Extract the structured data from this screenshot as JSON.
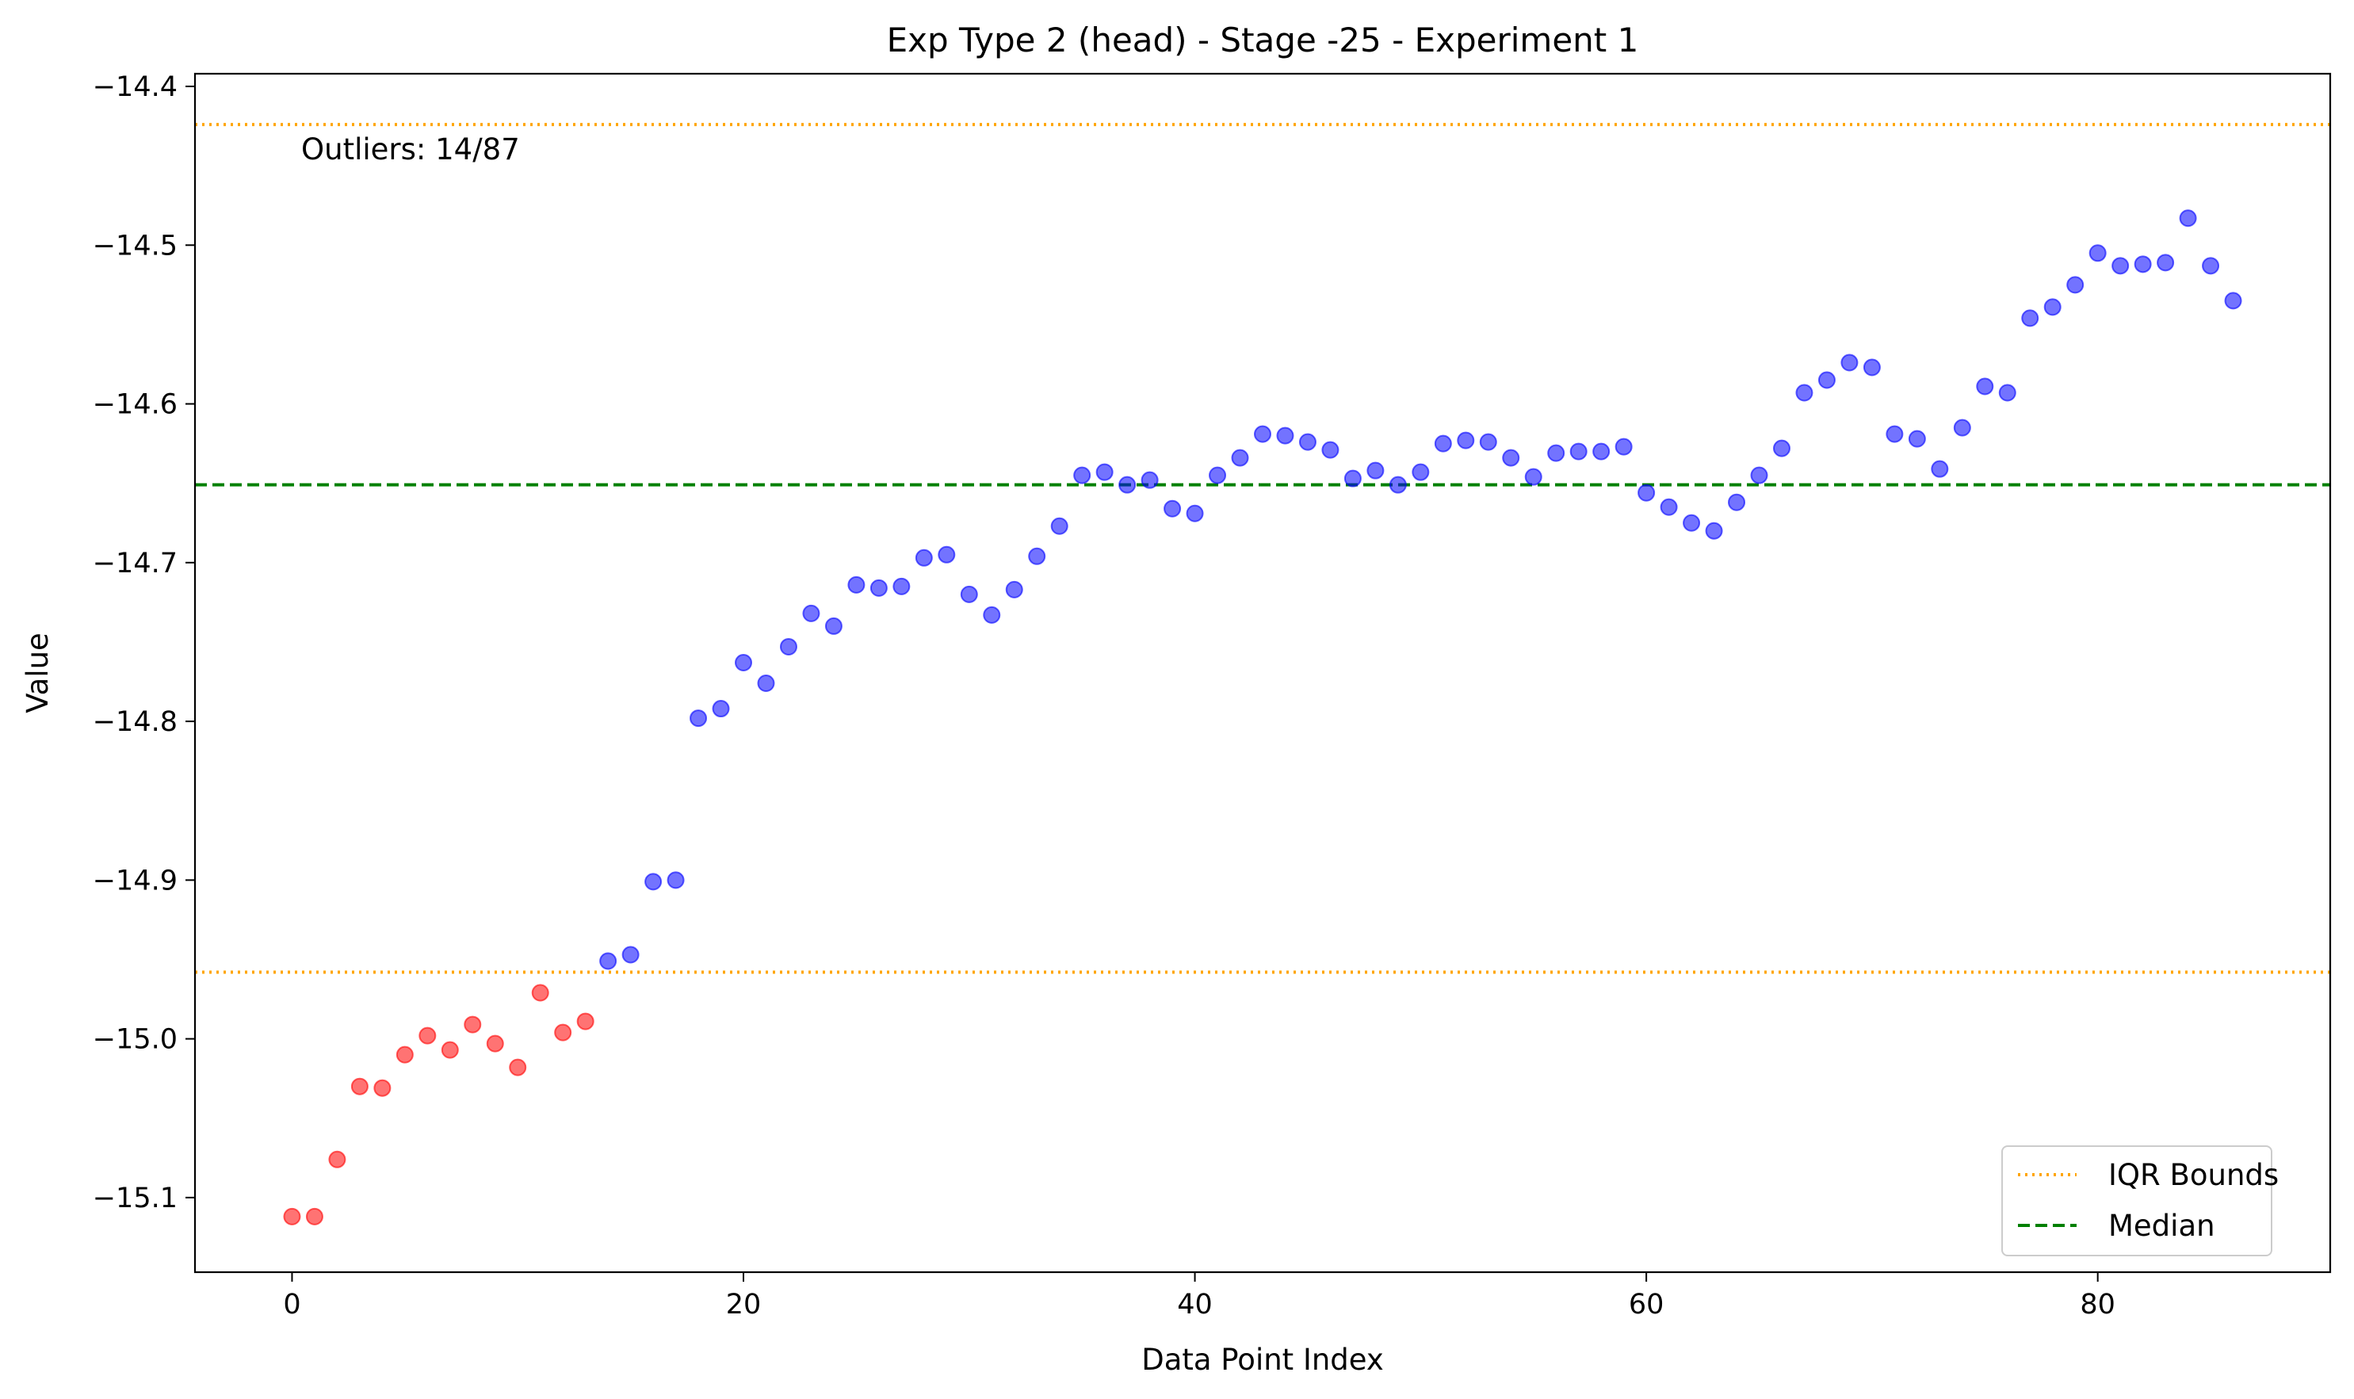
{
  "chart_data": {
    "type": "scatter",
    "title": "Exp Type 2 (head) - Stage -25 - Experiment 1",
    "xlabel": "Data Point Index",
    "ylabel": "Value",
    "xlim": [
      -4.3,
      90.3
    ],
    "ylim": [
      -15.147,
      -14.392
    ],
    "x_ticks": [
      0,
      20,
      40,
      60,
      80
    ],
    "x_tick_labels": [
      "0",
      "20",
      "40",
      "60",
      "80"
    ],
    "y_ticks": [
      -14.4,
      -14.5,
      -14.6,
      -14.7,
      -14.8,
      -14.9,
      -15.0,
      -15.1
    ],
    "y_tick_labels": [
      "−14.4",
      "−14.5",
      "−14.6",
      "−14.7",
      "−14.8",
      "−14.9",
      "−15.0",
      "−15.1"
    ],
    "grid": false,
    "annotation": "Outliers: 14/87",
    "outlier_color": "#ff0000",
    "inlier_color": "#0000ff",
    "reference_lines": [
      {
        "name": "IQR Bounds",
        "style": "dotted",
        "color": "#ffa500",
        "values": [
          -14.424,
          -14.958
        ]
      },
      {
        "name": "Median",
        "style": "dashed",
        "color": "#008000",
        "values": [
          -14.651
        ]
      }
    ],
    "legend": {
      "position": "lower-right",
      "entries": [
        {
          "label": "IQR Bounds",
          "style": "dotted",
          "color": "#ffa500"
        },
        {
          "label": "Median",
          "style": "dashed",
          "color": "#008000"
        }
      ]
    },
    "series": [
      {
        "x": [
          0,
          1,
          2,
          3,
          4,
          5,
          6,
          7,
          8,
          9,
          10,
          11,
          12,
          13,
          14,
          15,
          16,
          17,
          18,
          19,
          20,
          21,
          22,
          23,
          24,
          25,
          26,
          27,
          28,
          29,
          30,
          31,
          32,
          33,
          34,
          35,
          36,
          37,
          38,
          39,
          40,
          41,
          42,
          43,
          44,
          45,
          46,
          47,
          48,
          49,
          50,
          51,
          52,
          53,
          54,
          55,
          56,
          57,
          58,
          59,
          60,
          61,
          62,
          63,
          64,
          65,
          66,
          67,
          68,
          69,
          70,
          71,
          72,
          73,
          74,
          75,
          76,
          77,
          78,
          79,
          80,
          81,
          82,
          83,
          84,
          85,
          86
        ],
        "values": [
          -15.112,
          -15.112,
          -15.076,
          -15.03,
          -15.031,
          -15.01,
          -14.998,
          -15.007,
          -14.991,
          -15.003,
          -15.018,
          -14.971,
          -14.996,
          -14.989,
          -14.951,
          -14.947,
          -14.901,
          -14.9,
          -14.798,
          -14.792,
          -14.763,
          -14.776,
          -14.753,
          -14.732,
          -14.74,
          -14.714,
          -14.716,
          -14.715,
          -14.697,
          -14.695,
          -14.72,
          -14.733,
          -14.717,
          -14.696,
          -14.677,
          -14.645,
          -14.643,
          -14.651,
          -14.648,
          -14.666,
          -14.669,
          -14.645,
          -14.634,
          -14.619,
          -14.62,
          -14.624,
          -14.629,
          -14.647,
          -14.642,
          -14.651,
          -14.643,
          -14.625,
          -14.623,
          -14.624,
          -14.634,
          -14.646,
          -14.631,
          -14.63,
          -14.63,
          -14.627,
          -14.656,
          -14.665,
          -14.675,
          -14.68,
          -14.662,
          -14.645,
          -14.628,
          -14.593,
          -14.585,
          -14.574,
          -14.577,
          -14.619,
          -14.622,
          -14.641,
          -14.615,
          -14.589,
          -14.593,
          -14.546,
          -14.539,
          -14.525,
          -14.505,
          -14.513,
          -14.512,
          -14.511,
          -14.483,
          -14.513,
          -14.535
        ],
        "outlier": [
          true,
          true,
          true,
          true,
          true,
          true,
          true,
          true,
          true,
          true,
          true,
          true,
          true,
          true,
          false,
          false,
          false,
          false,
          false,
          false,
          false,
          false,
          false,
          false,
          false,
          false,
          false,
          false,
          false,
          false,
          false,
          false,
          false,
          false,
          false,
          false,
          false,
          false,
          false,
          false,
          false,
          false,
          false,
          false,
          false,
          false,
          false,
          false,
          false,
          false,
          false,
          false,
          false,
          false,
          false,
          false,
          false,
          false,
          false,
          false,
          false,
          false,
          false,
          false,
          false,
          false,
          false,
          false,
          false,
          false,
          false,
          false,
          false,
          false,
          false,
          false,
          false,
          false,
          false,
          false,
          false,
          false,
          false,
          false,
          false,
          false,
          false
        ]
      }
    ]
  }
}
